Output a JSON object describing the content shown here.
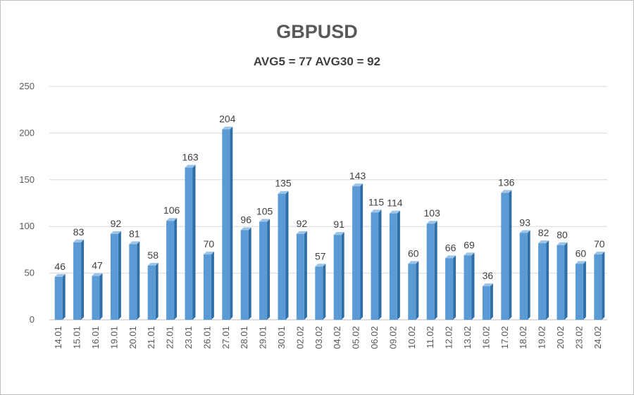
{
  "chart_data": {
    "type": "bar",
    "title": "GBPUSD",
    "subtitle": "AVG5 = 77 AVG30 = 92",
    "xlabel": "",
    "ylabel": "",
    "ylim": [
      0,
      250
    ],
    "yticks": [
      0,
      50,
      100,
      150,
      200,
      250
    ],
    "grid": true,
    "legend": "none",
    "categories": [
      "14.01",
      "15.01",
      "16.01",
      "19.01",
      "20.01",
      "21.01",
      "22.01",
      "23.01",
      "26.01",
      "27.01",
      "28.01",
      "29.01",
      "30.01",
      "02.02",
      "03.02",
      "04.02",
      "05.02",
      "06.02",
      "09.02",
      "10.02",
      "11.02",
      "12.02",
      "13.02",
      "16.02",
      "17.02",
      "18.02",
      "19.02",
      "20.02",
      "23.02",
      "24.02"
    ],
    "values": [
      46,
      83,
      47,
      92,
      81,
      58,
      106,
      163,
      70,
      204,
      96,
      105,
      135,
      92,
      57,
      91,
      143,
      115,
      114,
      60,
      103,
      66,
      69,
      36,
      136,
      93,
      82,
      80,
      60,
      70
    ],
    "colors": {
      "bar_front": "#5b9bd5",
      "bar_side": "#2f6ea6",
      "bar_top": "#9cc3e8",
      "grid": "#d9d9d9",
      "axis": "#bfbfbf"
    }
  }
}
